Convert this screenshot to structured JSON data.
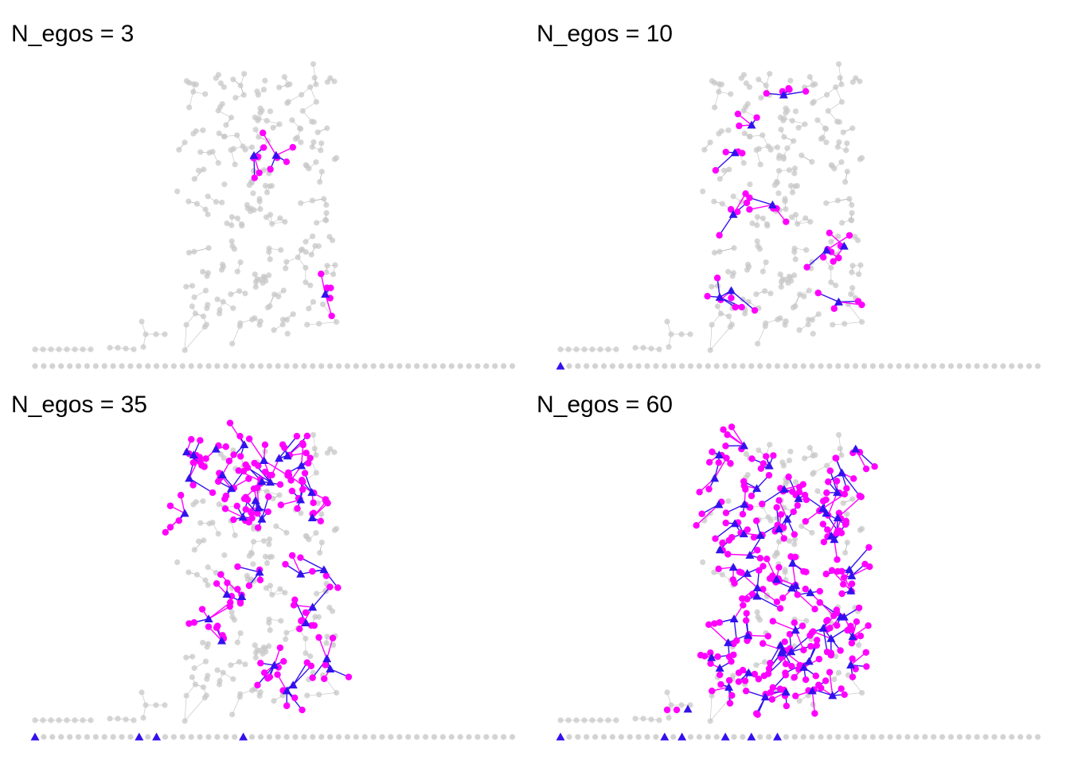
{
  "panels": [
    {
      "title": "N_egos = 3",
      "n_egos": 3,
      "isolate_egos": []
    },
    {
      "title": "N_egos = 10",
      "n_egos": 10,
      "isolate_egos": [
        1
      ]
    },
    {
      "title": "N_egos = 35",
      "n_egos": 35,
      "isolate_egos": [
        1,
        13,
        15,
        25
      ]
    },
    {
      "title": "N_egos = 60",
      "n_egos": 60,
      "isolate_egos": [
        1,
        13,
        15,
        20,
        23,
        26
      ],
      "small_component_ego": true
    }
  ],
  "colors": {
    "background_node": "#c8c8c8",
    "background_edge": "#9a9a9a",
    "alter": "#ff00ff",
    "ego": "#3311ee"
  },
  "legend_symbols": {
    "ego": "triangle",
    "alter": "circle",
    "other": "circle"
  },
  "isolates_count": 53
}
